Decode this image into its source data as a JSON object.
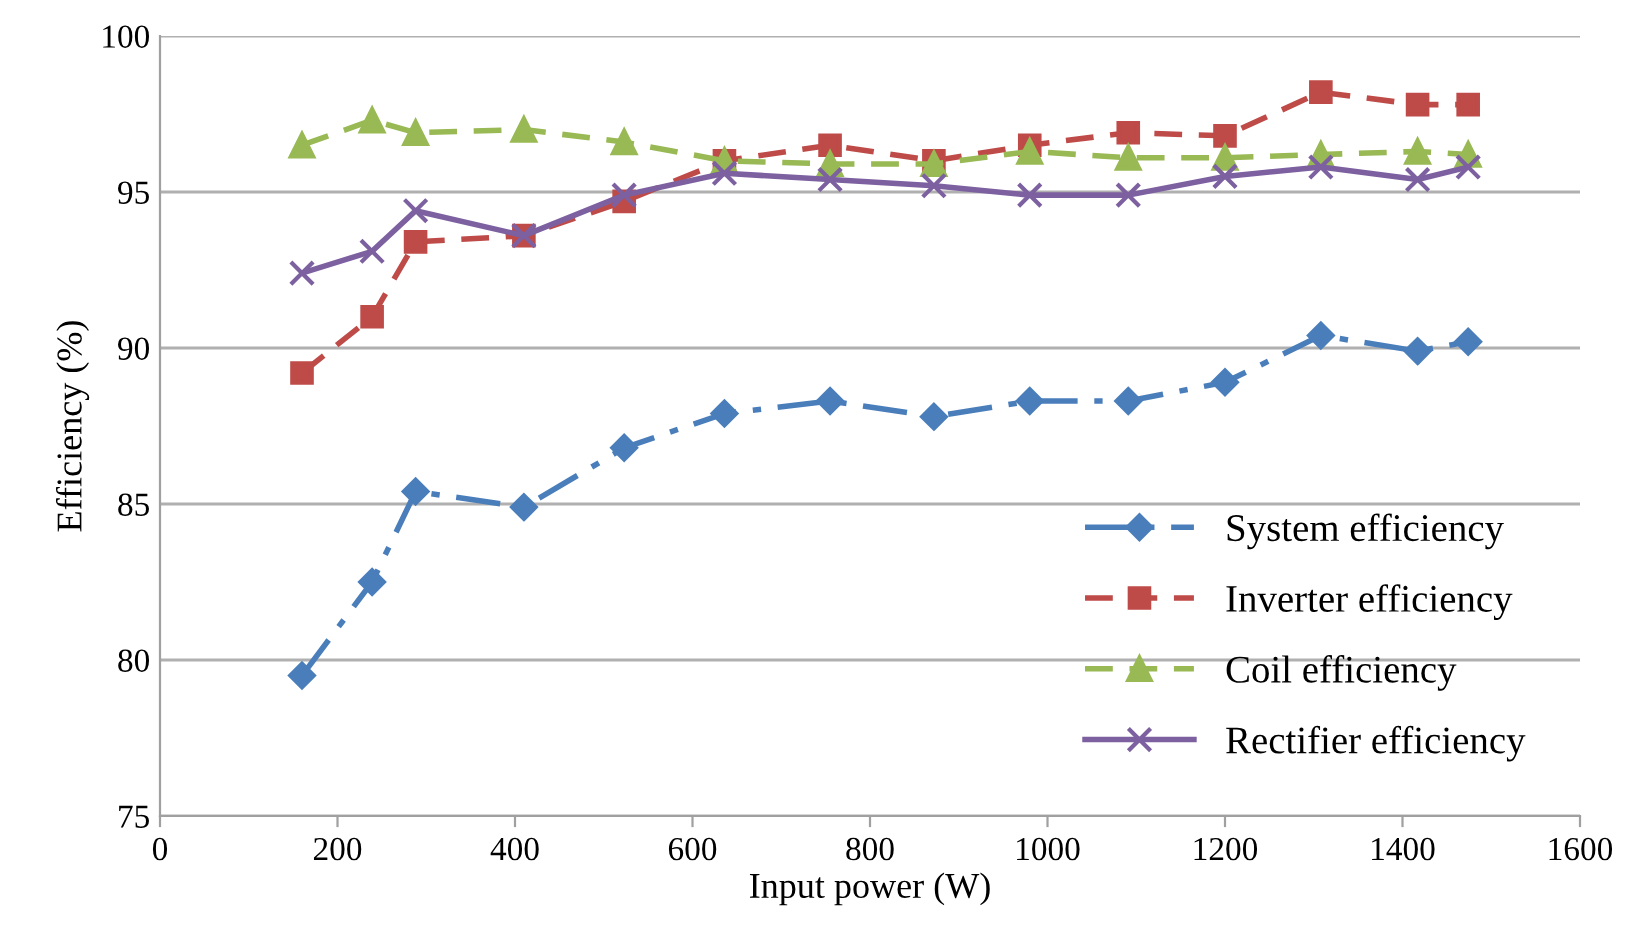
{
  "chart_data": {
    "type": "line",
    "xlabel": "Input power (W)",
    "ylabel": "Efficiency (%)",
    "x": [
      160,
      239,
      288,
      410,
      523,
      636,
      755,
      872,
      980,
      1091,
      1200,
      1308,
      1417,
      1474
    ],
    "xlim": [
      0,
      1600
    ],
    "xticks": [
      0,
      200,
      400,
      600,
      800,
      1000,
      1200,
      1400,
      1600
    ],
    "ylim": [
      75,
      100
    ],
    "yticks": [
      75,
      80,
      85,
      90,
      95,
      100
    ],
    "grid": "y",
    "legend": "bottom right",
    "series": [
      {
        "name": "System efficiency",
        "color": "#4a7ebb",
        "marker": "diamond",
        "line_style": "dashdot",
        "values": [
          79.5,
          82.5,
          85.4,
          84.9,
          86.8,
          87.9,
          88.3,
          87.8,
          88.3,
          88.3,
          88.9,
          90.4,
          89.9,
          90.2
        ]
      },
      {
        "name": "Inverter efficiency",
        "color": "#be4b48",
        "marker": "square",
        "line_style": "dashed",
        "values": [
          89.2,
          91.0,
          93.4,
          93.6,
          94.7,
          96.0,
          96.5,
          96.0,
          96.5,
          96.9,
          96.8,
          98.2,
          97.8,
          97.8
        ]
      },
      {
        "name": "Coil efficiency",
        "color": "#98b954",
        "marker": "triangle",
        "line_style": "dashed",
        "values": [
          96.5,
          97.3,
          96.9,
          97.0,
          96.6,
          96.0,
          95.9,
          95.9,
          96.3,
          96.1,
          96.1,
          96.2,
          96.3,
          96.2
        ]
      },
      {
        "name": "Rectifier efficiency",
        "color": "#7d60a0",
        "marker": "cross",
        "line_style": "solid",
        "values": [
          92.4,
          93.1,
          94.4,
          93.6,
          94.9,
          95.6,
          95.4,
          95.2,
          94.9,
          94.9,
          95.5,
          95.8,
          95.4,
          95.8
        ]
      }
    ]
  }
}
